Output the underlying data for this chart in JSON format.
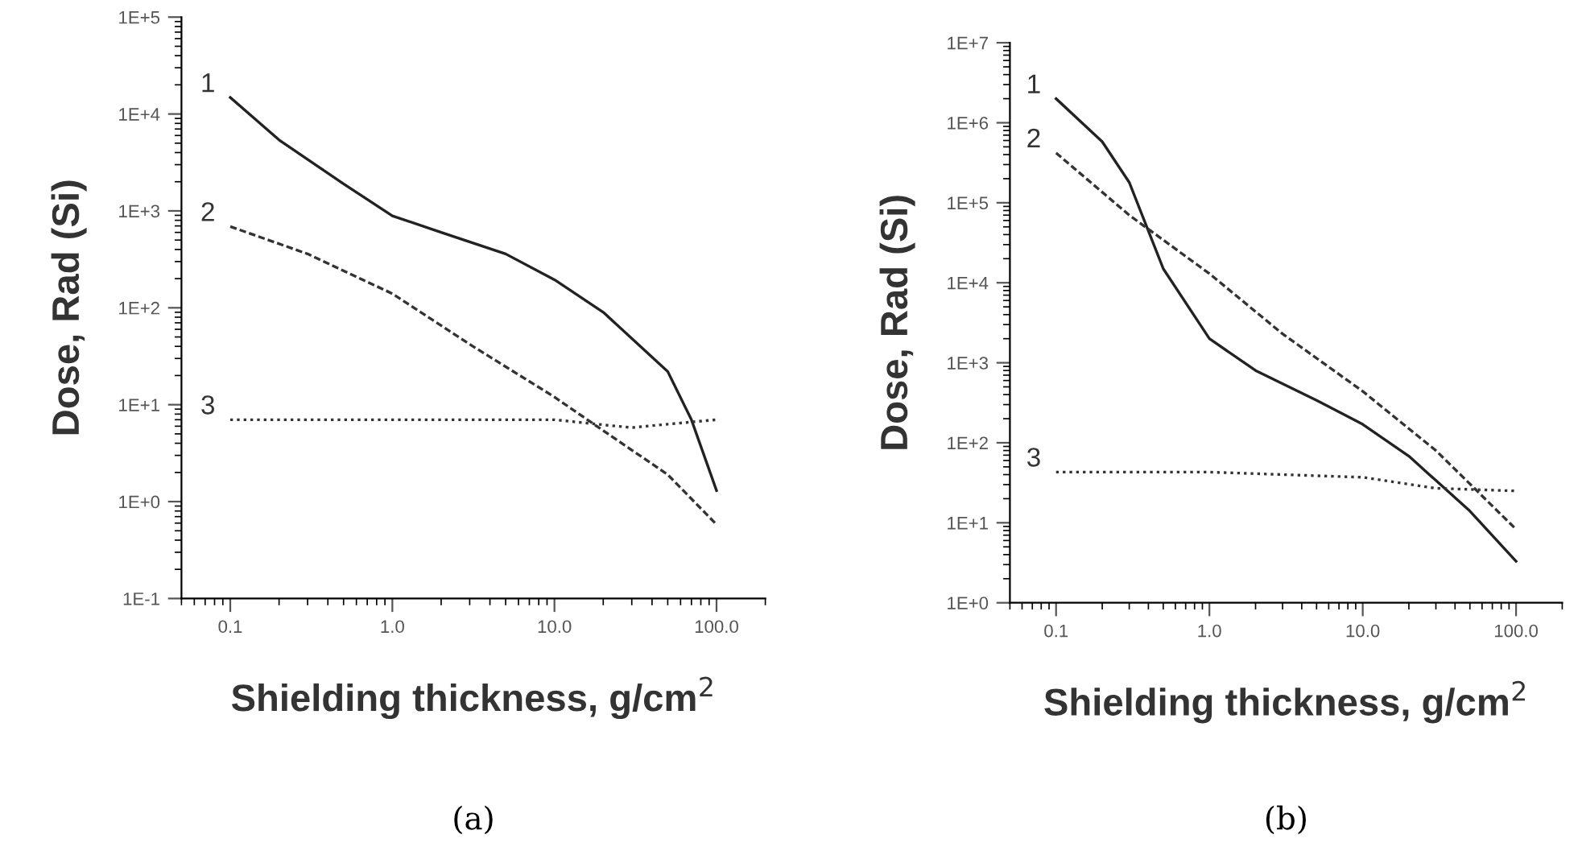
{
  "chart_data": [
    {
      "type": "line",
      "xlabel": "Shielding thickness, g/cm$^{2}$",
      "ylabel": "Dose, Rad (Si)",
      "log": "xy",
      "grid": false,
      "legend": false,
      "xlim": [
        0.05,
        200
      ],
      "ylim": [
        0.1,
        100000
      ],
      "xticks": [
        {
          "value": 0.1,
          "label": "0.1"
        },
        {
          "value": 1,
          "label": "1.0"
        },
        {
          "value": 10,
          "label": "10.0"
        },
        {
          "value": 100,
          "label": "100.0"
        }
      ],
      "yticks": [
        {
          "value": 0.1,
          "label": "1E-1"
        },
        {
          "value": 1,
          "label": "1E+0"
        },
        {
          "value": 10,
          "label": "1E+1"
        },
        {
          "value": 100,
          "label": "1E+2"
        },
        {
          "value": 1000,
          "label": "1E+3"
        },
        {
          "value": 10000,
          "label": "1E+4"
        },
        {
          "value": 100000,
          "label": "1E+5"
        }
      ],
      "annotations": [
        "(a)"
      ],
      "series": [
        {
          "name": "1",
          "color": "#222222",
          "line_style": "solid",
          "x": [
            0.1,
            0.2,
            0.5,
            1,
            2,
            5,
            10,
            20,
            50,
            70,
            100
          ],
          "values": [
            14800,
            5400,
            1900,
            890,
            600,
            360,
            195,
            90,
            22,
            7,
            1.3
          ]
        },
        {
          "name": "2",
          "color": "#333333",
          "line_style": "dashed",
          "x": [
            0.1,
            0.3,
            1,
            3,
            10,
            20,
            50,
            100
          ],
          "values": [
            690,
            360,
            140,
            42,
            12,
            5.4,
            1.9,
            0.58
          ]
        },
        {
          "name": "3",
          "color": "#333333",
          "line_style": "dotted",
          "x": [
            0.1,
            1,
            10,
            20,
            30,
            50,
            100
          ],
          "values": [
            7,
            7,
            7,
            6.2,
            5.8,
            6.3,
            7
          ]
        }
      ]
    },
    {
      "type": "line",
      "xlabel": "Shielding thickness, g/cm$^{2}$",
      "ylabel": "Dose, Rad (Si)",
      "log": "xy",
      "grid": false,
      "legend": false,
      "xlim": [
        0.05,
        200
      ],
      "ylim": [
        1,
        10000000
      ],
      "xticks": [
        {
          "value": 0.1,
          "label": "0.1"
        },
        {
          "value": 1,
          "label": "1.0"
        },
        {
          "value": 10,
          "label": "10.0"
        },
        {
          "value": 100,
          "label": "100.0"
        }
      ],
      "yticks": [
        {
          "value": 1,
          "label": "1E+0"
        },
        {
          "value": 10,
          "label": "1E+1"
        },
        {
          "value": 100,
          "label": "1E+2"
        },
        {
          "value": 1000,
          "label": "1E+3"
        },
        {
          "value": 10000,
          "label": "1E+4"
        },
        {
          "value": 100000,
          "label": "1E+5"
        },
        {
          "value": 1000000,
          "label": "1E+6"
        },
        {
          "value": 10000000,
          "label": "1E+7"
        }
      ],
      "annotations": [
        "(b)"
      ],
      "series": [
        {
          "name": "1",
          "color": "#222222",
          "line_style": "solid",
          "x": [
            0.1,
            0.2,
            0.3,
            0.5,
            1,
            2,
            5,
            10,
            20,
            50,
            100
          ],
          "values": [
            2000000,
            580000,
            180000,
            15000,
            2000,
            800,
            340,
            170,
            68,
            14,
            3.3
          ]
        },
        {
          "name": "2",
          "color": "#333333",
          "line_style": "dashed",
          "x": [
            0.1,
            0.3,
            1,
            3,
            10,
            30,
            100
          ],
          "values": [
            420000,
            70000,
            13000,
            2300,
            440,
            80,
            8.3
          ]
        },
        {
          "name": "3",
          "color": "#333333",
          "line_style": "dotted",
          "x": [
            0.1,
            1,
            10,
            30,
            100
          ],
          "values": [
            43,
            43,
            37,
            27,
            25
          ]
        }
      ]
    }
  ]
}
